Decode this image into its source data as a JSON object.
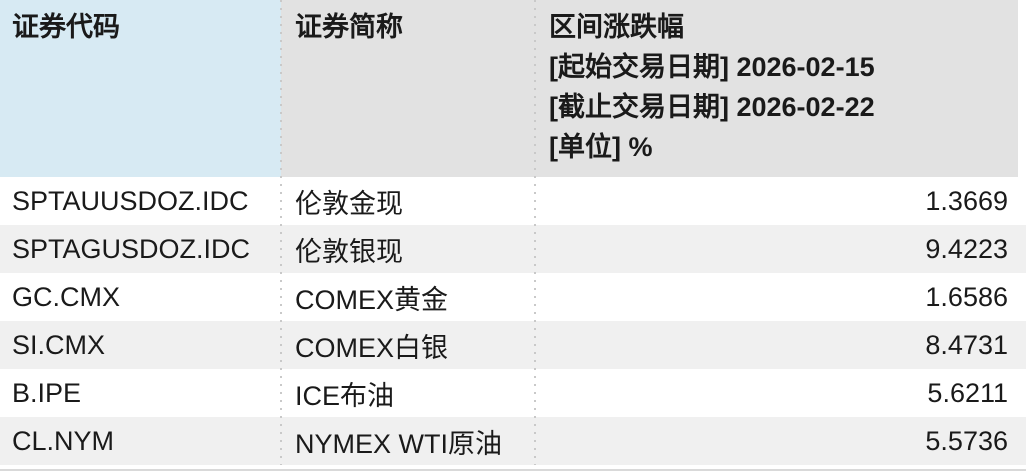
{
  "colors": {
    "header_code_bg": "#d7eaf3",
    "header_bg": "#e2e2e2",
    "row_bg": "#ffffff",
    "row_alt_bg": "#f0f0f0",
    "divider_dot": "#c9c9c9",
    "bottom_border": "#d9d9d9",
    "text": "#1a1a1a"
  },
  "table": {
    "columns": [
      {
        "id": "code",
        "label": "证券代码"
      },
      {
        "id": "name",
        "label": "证券简称"
      },
      {
        "id": "change",
        "label": "区间涨跌幅",
        "meta": [
          "[起始交易日期] 2026-02-15",
          "[截止交易日期] 2026-02-22",
          "[单位] %"
        ]
      }
    ],
    "rows": [
      {
        "code": "SPTAUUSDOZ.IDC",
        "name": "伦敦金现",
        "change": "1.3669"
      },
      {
        "code": "SPTAGUSDOZ.IDC",
        "name": "伦敦银现",
        "change": "9.4223"
      },
      {
        "code": "GC.CMX",
        "name": "COMEX黄金",
        "change": "1.6586"
      },
      {
        "code": "SI.CMX",
        "name": "COMEX白银",
        "change": "8.4731"
      },
      {
        "code": "B.IPE",
        "name": "ICE布油",
        "change": "5.6211"
      },
      {
        "code": "CL.NYM",
        "name": "NYMEX WTI原油",
        "change": "5.5736"
      }
    ]
  }
}
